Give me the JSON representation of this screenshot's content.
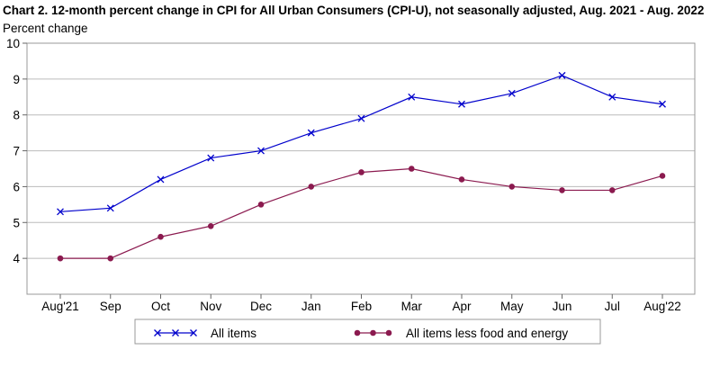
{
  "chart_data": {
    "type": "line",
    "title": "Chart 2. 12-month percent change in CPI for All Urban Consumers (CPI-U), not seasonally adjusted, Aug. 2021 - Aug. 2022",
    "ylabel": "Percent change",
    "xlabel": "",
    "categories": [
      "Aug'21",
      "Sep",
      "Oct",
      "Nov",
      "Dec",
      "Jan",
      "Feb",
      "Mar",
      "Apr",
      "May",
      "Jun",
      "Jul",
      "Aug'22"
    ],
    "ylim": [
      3,
      10
    ],
    "yticks": [
      4,
      5,
      6,
      7,
      8,
      9,
      10
    ],
    "grid": true,
    "legend_position": "bottom",
    "series": [
      {
        "name": "All items",
        "color": "#0000cc",
        "marker": "x",
        "values": [
          5.3,
          5.4,
          6.2,
          6.8,
          7.0,
          7.5,
          7.9,
          8.5,
          8.3,
          8.6,
          9.1,
          8.5,
          8.3
        ]
      },
      {
        "name": "All items less food and energy",
        "color": "#8b1a4f",
        "marker": "circle",
        "values": [
          4.0,
          4.0,
          4.6,
          4.9,
          5.5,
          6.0,
          6.4,
          6.5,
          6.2,
          6.0,
          5.9,
          5.9,
          6.3
        ]
      }
    ]
  }
}
